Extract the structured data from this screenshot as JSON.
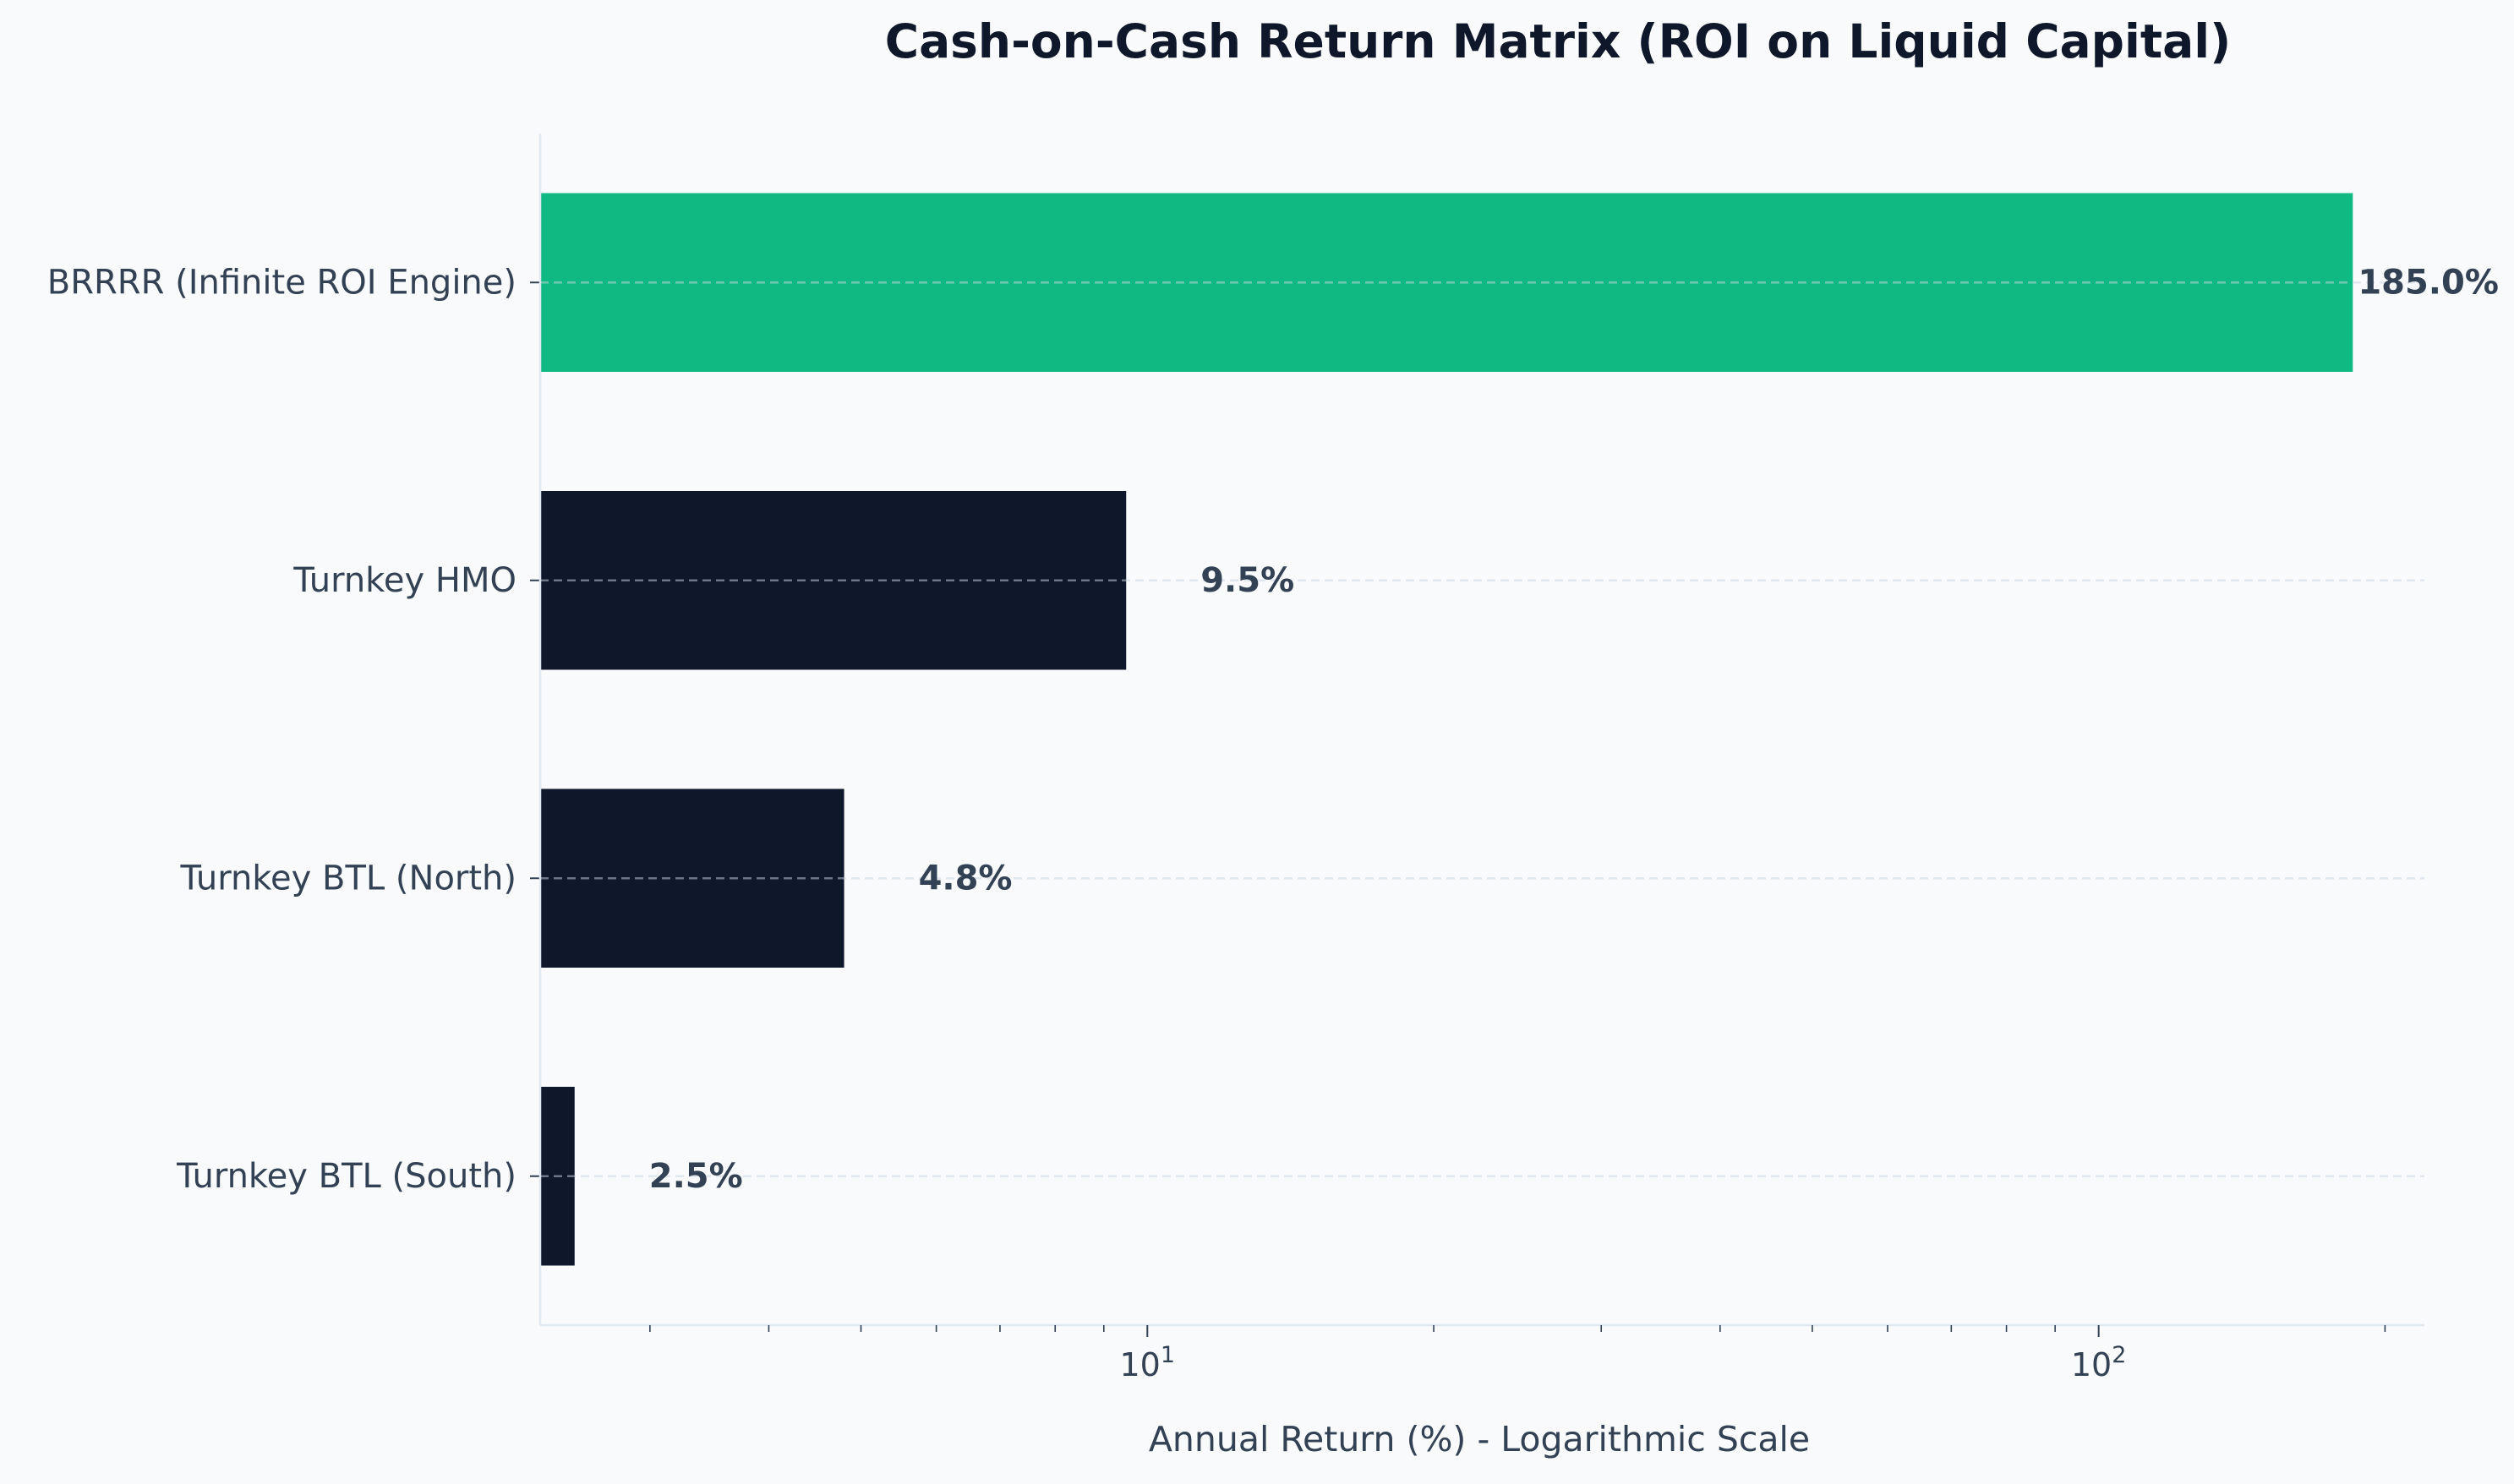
{
  "chart_data": {
    "type": "bar",
    "orientation": "horizontal",
    "title": "Cash-on-Cash Return Matrix (ROI on Liquid Capital)",
    "xlabel": "Annual Return (%) - Logarithmic Scale",
    "ylabel": "",
    "x_scale": "log",
    "xlim": [
      2.3,
      220
    ],
    "categories": [
      "BRRRR (Infinite ROI Engine)",
      "Turnkey HMO",
      "Turnkey BTL (North)",
      "Turnkey BTL (South)"
    ],
    "values": [
      185.0,
      9.5,
      4.8,
      2.5
    ],
    "value_labels": [
      "185.0%",
      "9.5%",
      "4.8%",
      "2.5%"
    ],
    "bar_colors": [
      "#10b981",
      "#0f172a",
      "#0f172a",
      "#0f172a"
    ],
    "major_ticks": [
      {
        "value": 10,
        "base": "10",
        "exp": "1"
      },
      {
        "value": 100,
        "base": "10",
        "exp": "2"
      }
    ],
    "minor_ticks": [
      3,
      4,
      5,
      6,
      7,
      8,
      9,
      20,
      30,
      40,
      50,
      60,
      70,
      80,
      90,
      200
    ],
    "grid": "x-dashed",
    "legend": "none",
    "colors": {
      "background": "#f8fafc",
      "highlight": "#10b981",
      "bar": "#0f172a",
      "text": "#334155",
      "title": "#0f172a",
      "axis": "#e2e8f0"
    }
  }
}
